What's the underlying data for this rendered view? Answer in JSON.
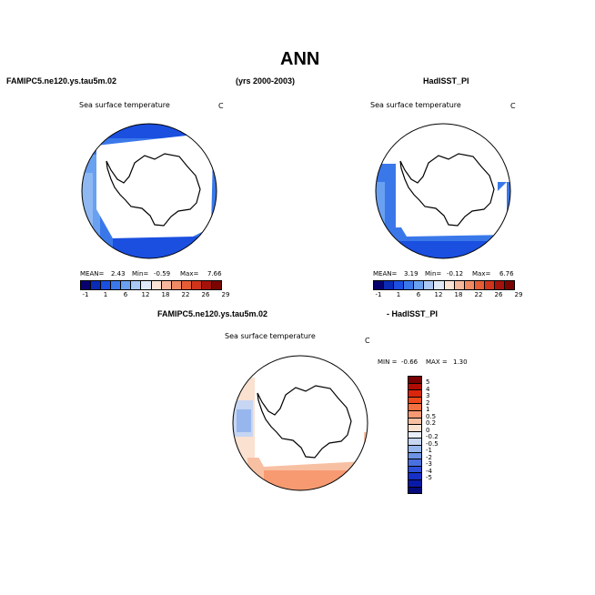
{
  "page": {
    "title": "ANN",
    "left_case": "FAMIPC5.ne120.ys.tau5m.02",
    "years": "(yrs 2000-2003)",
    "right_case": "HadISST_PI",
    "diff_left": "FAMIPC5.ne120.ys.tau5m.02",
    "diff_right": "- HadISST_PI"
  },
  "panel1": {
    "variable": "Sea surface temperature",
    "units": "C",
    "mean_label": "MEAN=",
    "mean": "2.43",
    "min_label": "Min=",
    "min": "-0.59",
    "max_label": "Max=",
    "max": "7.66"
  },
  "panel2": {
    "variable": "Sea surface temperature",
    "units": "C",
    "mean_label": "MEAN=",
    "mean": "3.19",
    "min_label": "Min=",
    "min": "-0.12",
    "max_label": "Max=",
    "max": "6.76"
  },
  "panel3": {
    "variable": "Sea surface temperature",
    "units": "C",
    "min_label": "MIN =",
    "min": "-0.66",
    "max_label": "MAX =",
    "max": "1.30"
  },
  "colorbar_abs": {
    "colors": [
      "#08006e",
      "#0a2bb5",
      "#1b4fe0",
      "#3a78ea",
      "#6aa0f0",
      "#a9c8f5",
      "#dfe9f8",
      "#fbe3d6",
      "#f6b89b",
      "#f08a63",
      "#e65d35",
      "#d0341b",
      "#a5120c",
      "#7a0500"
    ],
    "labels": [
      "-1",
      "1",
      "6",
      "12",
      "18",
      "22",
      "26",
      "29"
    ]
  },
  "colorbar_diff": {
    "colors": [
      "#7a0000",
      "#b00d00",
      "#d9260c",
      "#ec4a1c",
      "#f47040",
      "#f79a72",
      "#f8c0a2",
      "#fbe1d0",
      "#e8eef8",
      "#c6d6f3",
      "#98b6ee",
      "#6d93e7",
      "#4a70e0",
      "#2e4fd8",
      "#1630c8",
      "#0a1aa8",
      "#050a7a"
    ],
    "labels": [
      "5",
      "4",
      "3",
      "2",
      "1",
      "0.5",
      "0.2",
      "0",
      "-0.2",
      "-0.5",
      "-1",
      "-2",
      "-3",
      "-4",
      "-5"
    ]
  }
}
